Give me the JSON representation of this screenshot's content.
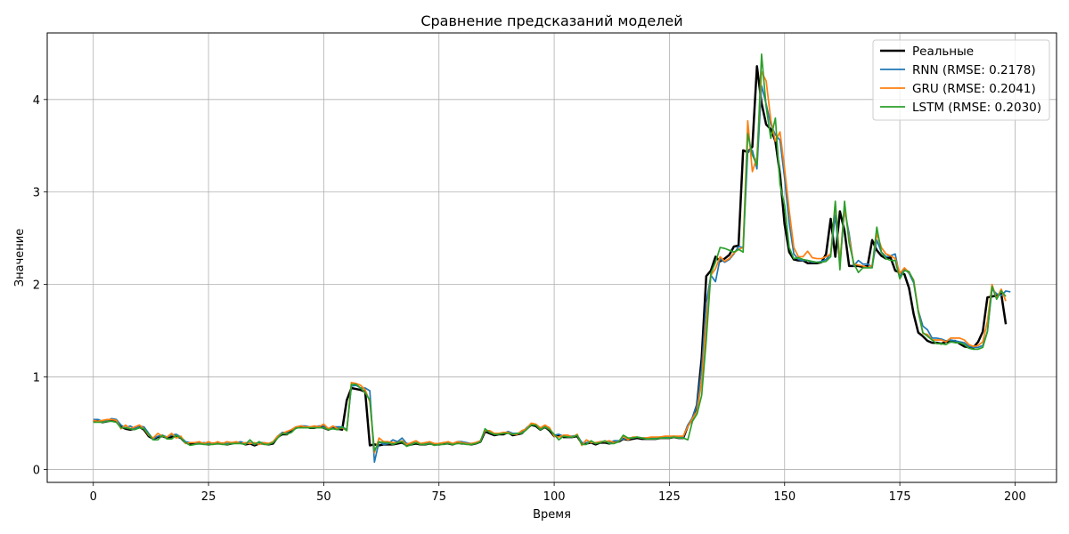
{
  "chart_data": {
    "type": "line",
    "title": "Сравнение предсказаний моделей",
    "xlabel": "Время",
    "ylabel": "Значение",
    "xlim": [
      -10,
      209
    ],
    "ylim": [
      -0.14,
      4.72
    ],
    "xticks": [
      0,
      25,
      50,
      75,
      100,
      125,
      150,
      175,
      200
    ],
    "yticks": [
      0,
      1,
      2,
      3,
      4
    ],
    "grid": true,
    "legend_position": "top-right",
    "series": [
      {
        "name": "Реальные",
        "color": "#000000",
        "width": 2.5,
        "x_start": 0,
        "values": [
          0.52,
          0.53,
          0.51,
          0.52,
          0.53,
          0.52,
          0.46,
          0.44,
          0.43,
          0.44,
          0.46,
          0.43,
          0.36,
          0.33,
          0.35,
          0.36,
          0.34,
          0.35,
          0.36,
          0.34,
          0.29,
          0.28,
          0.28,
          0.28,
          0.28,
          0.27,
          0.28,
          0.28,
          0.28,
          0.27,
          0.28,
          0.29,
          0.29,
          0.27,
          0.28,
          0.26,
          0.28,
          0.28,
          0.27,
          0.28,
          0.35,
          0.38,
          0.38,
          0.42,
          0.45,
          0.46,
          0.46,
          0.45,
          0.45,
          0.46,
          0.45,
          0.43,
          0.45,
          0.44,
          0.43,
          0.75,
          0.88,
          0.87,
          0.86,
          0.84,
          0.26,
          0.27,
          0.26,
          0.27,
          0.27,
          0.27,
          0.28,
          0.29,
          0.26,
          0.27,
          0.28,
          0.27,
          0.27,
          0.28,
          0.27,
          0.27,
          0.28,
          0.28,
          0.27,
          0.29,
          0.28,
          0.28,
          0.27,
          0.28,
          0.3,
          0.41,
          0.39,
          0.37,
          0.38,
          0.38,
          0.4,
          0.37,
          0.38,
          0.39,
          0.44,
          0.48,
          0.47,
          0.43,
          0.46,
          0.42,
          0.36,
          0.37,
          0.35,
          0.35,
          0.35,
          0.36,
          0.28,
          0.28,
          0.29,
          0.27,
          0.29,
          0.29,
          0.28,
          0.3,
          0.3,
          0.33,
          0.32,
          0.33,
          0.34,
          0.33,
          0.33,
          0.33,
          0.33,
          0.34,
          0.34,
          0.34,
          0.35,
          0.34,
          0.34,
          0.47,
          0.55,
          0.7,
          1.2,
          2.09,
          2.15,
          2.3,
          2.25,
          2.28,
          2.32,
          2.41,
          2.42,
          3.45,
          3.43,
          3.49,
          4.36,
          3.96,
          3.73,
          3.68,
          3.55,
          3.19,
          2.65,
          2.35,
          2.27,
          2.26,
          2.26,
          2.23,
          2.23,
          2.23,
          2.24,
          2.33,
          2.71,
          2.3,
          2.79,
          2.58,
          2.2,
          2.2,
          2.2,
          2.19,
          2.2,
          2.48,
          2.37,
          2.31,
          2.28,
          2.29,
          2.15,
          2.13,
          2.11,
          1.96,
          1.68,
          1.48,
          1.44,
          1.39,
          1.37,
          1.37,
          1.36,
          1.38,
          1.38,
          1.39,
          1.36,
          1.33,
          1.32,
          1.32,
          1.38,
          1.49,
          1.86,
          1.87,
          1.88,
          1.9,
          1.57
        ]
      },
      {
        "name": "RNN (RMSE: 0.2178)",
        "color": "#1f77b4",
        "width": 1.7,
        "x_start": 0,
        "values": [
          0.54,
          0.54,
          0.52,
          0.53,
          0.55,
          0.54,
          0.48,
          0.45,
          0.47,
          0.44,
          0.47,
          0.46,
          0.39,
          0.33,
          0.36,
          0.37,
          0.35,
          0.37,
          0.38,
          0.35,
          0.3,
          0.29,
          0.29,
          0.28,
          0.29,
          0.28,
          0.28,
          0.29,
          0.28,
          0.28,
          0.28,
          0.29,
          0.3,
          0.28,
          0.29,
          0.27,
          0.29,
          0.29,
          0.28,
          0.29,
          0.36,
          0.4,
          0.4,
          0.43,
          0.46,
          0.47,
          0.47,
          0.46,
          0.46,
          0.47,
          0.47,
          0.44,
          0.46,
          0.46,
          0.46,
          0.43,
          0.9,
          0.91,
          0.88,
          0.88,
          0.85,
          0.08,
          0.3,
          0.27,
          0.28,
          0.32,
          0.3,
          0.34,
          0.28,
          0.28,
          0.29,
          0.28,
          0.28,
          0.29,
          0.28,
          0.28,
          0.29,
          0.29,
          0.28,
          0.3,
          0.3,
          0.29,
          0.28,
          0.29,
          0.31,
          0.42,
          0.41,
          0.38,
          0.39,
          0.39,
          0.41,
          0.39,
          0.39,
          0.4,
          0.45,
          0.49,
          0.48,
          0.44,
          0.47,
          0.44,
          0.37,
          0.38,
          0.36,
          0.36,
          0.36,
          0.37,
          0.29,
          0.29,
          0.3,
          0.28,
          0.3,
          0.3,
          0.29,
          0.31,
          0.31,
          0.33,
          0.33,
          0.34,
          0.35,
          0.34,
          0.34,
          0.34,
          0.34,
          0.35,
          0.35,
          0.35,
          0.36,
          0.35,
          0.35,
          0.48,
          0.56,
          0.7,
          1.1,
          1.8,
          2.1,
          2.03,
          2.28,
          2.24,
          2.27,
          2.33,
          2.41,
          2.4,
          3.44,
          3.45,
          3.25,
          4.15,
          3.95,
          3.73,
          3.62,
          3.56,
          3.15,
          2.66,
          2.33,
          2.27,
          2.26,
          2.26,
          2.24,
          2.24,
          2.25,
          2.27,
          2.33,
          2.75,
          2.22,
          2.81,
          2.55,
          2.2,
          2.26,
          2.22,
          2.22,
          2.19,
          2.48,
          2.35,
          2.3,
          2.31,
          2.33,
          2.08,
          2.17,
          2.12,
          2.02,
          1.72,
          1.55,
          1.51,
          1.42,
          1.42,
          1.41,
          1.39,
          1.4,
          1.39,
          1.38,
          1.37,
          1.33,
          1.32,
          1.32,
          1.34,
          1.49,
          1.95,
          1.9,
          1.88,
          1.93,
          1.92
        ]
      },
      {
        "name": "GRU (RMSE: 0.2041)",
        "color": "#ff7f0e",
        "width": 1.7,
        "x_start": 0,
        "values": [
          0.53,
          0.52,
          0.53,
          0.54,
          0.54,
          0.53,
          0.44,
          0.48,
          0.44,
          0.46,
          0.48,
          0.44,
          0.37,
          0.34,
          0.39,
          0.36,
          0.35,
          0.39,
          0.34,
          0.36,
          0.28,
          0.29,
          0.29,
          0.3,
          0.28,
          0.3,
          0.28,
          0.3,
          0.28,
          0.3,
          0.29,
          0.3,
          0.28,
          0.29,
          0.28,
          0.29,
          0.27,
          0.29,
          0.28,
          0.3,
          0.36,
          0.39,
          0.41,
          0.43,
          0.46,
          0.47,
          0.46,
          0.46,
          0.47,
          0.46,
          0.49,
          0.44,
          0.47,
          0.44,
          0.45,
          0.42,
          0.94,
          0.93,
          0.91,
          0.86,
          0.73,
          0.18,
          0.34,
          0.3,
          0.3,
          0.29,
          0.29,
          0.31,
          0.27,
          0.29,
          0.31,
          0.28,
          0.29,
          0.3,
          0.28,
          0.28,
          0.29,
          0.3,
          0.28,
          0.3,
          0.29,
          0.28,
          0.28,
          0.29,
          0.31,
          0.42,
          0.42,
          0.39,
          0.39,
          0.4,
          0.4,
          0.38,
          0.38,
          0.42,
          0.44,
          0.5,
          0.49,
          0.45,
          0.48,
          0.45,
          0.36,
          0.35,
          0.37,
          0.37,
          0.35,
          0.38,
          0.26,
          0.32,
          0.29,
          0.29,
          0.3,
          0.3,
          0.31,
          0.29,
          0.3,
          0.36,
          0.32,
          0.35,
          0.35,
          0.34,
          0.34,
          0.35,
          0.35,
          0.35,
          0.36,
          0.36,
          0.36,
          0.36,
          0.36,
          0.46,
          0.55,
          0.63,
          0.95,
          1.6,
          2.1,
          2.17,
          2.3,
          2.25,
          2.28,
          2.34,
          2.38,
          2.4,
          3.77,
          3.22,
          3.38,
          4.3,
          4.2,
          3.78,
          3.55,
          3.65,
          3.25,
          2.8,
          2.4,
          2.3,
          2.3,
          2.36,
          2.29,
          2.28,
          2.28,
          2.3,
          2.33,
          2.88,
          2.25,
          2.83,
          2.5,
          2.22,
          2.21,
          2.2,
          2.18,
          2.21,
          2.55,
          2.4,
          2.33,
          2.31,
          2.28,
          2.12,
          2.18,
          2.13,
          2.05,
          1.72,
          1.47,
          1.46,
          1.4,
          1.4,
          1.4,
          1.38,
          1.42,
          1.42,
          1.42,
          1.4,
          1.35,
          1.33,
          1.34,
          1.38,
          1.6,
          2.0,
          1.85,
          1.95,
          1.82
        ]
      },
      {
        "name": "LSTM (RMSE: 0.2030)",
        "color": "#2ca02c",
        "width": 1.7,
        "x_start": 0,
        "values": [
          0.51,
          0.51,
          0.51,
          0.52,
          0.52,
          0.51,
          0.45,
          0.45,
          0.44,
          0.43,
          0.45,
          0.44,
          0.38,
          0.32,
          0.32,
          0.37,
          0.33,
          0.33,
          0.37,
          0.34,
          0.29,
          0.26,
          0.27,
          0.28,
          0.27,
          0.27,
          0.27,
          0.28,
          0.27,
          0.27,
          0.28,
          0.28,
          0.28,
          0.27,
          0.32,
          0.27,
          0.3,
          0.27,
          0.27,
          0.29,
          0.34,
          0.39,
          0.38,
          0.4,
          0.45,
          0.45,
          0.45,
          0.45,
          0.45,
          0.45,
          0.45,
          0.43,
          0.44,
          0.43,
          0.46,
          0.42,
          0.92,
          0.92,
          0.88,
          0.83,
          0.75,
          0.2,
          0.3,
          0.29,
          0.29,
          0.27,
          0.29,
          0.3,
          0.25,
          0.27,
          0.29,
          0.27,
          0.27,
          0.28,
          0.26,
          0.27,
          0.27,
          0.28,
          0.27,
          0.28,
          0.28,
          0.27,
          0.27,
          0.28,
          0.3,
          0.44,
          0.4,
          0.38,
          0.38,
          0.39,
          0.39,
          0.38,
          0.39,
          0.39,
          0.43,
          0.48,
          0.48,
          0.43,
          0.46,
          0.43,
          0.38,
          0.32,
          0.36,
          0.35,
          0.35,
          0.37,
          0.27,
          0.27,
          0.31,
          0.28,
          0.29,
          0.31,
          0.28,
          0.28,
          0.3,
          0.37,
          0.34,
          0.34,
          0.35,
          0.34,
          0.33,
          0.33,
          0.33,
          0.34,
          0.34,
          0.34,
          0.35,
          0.34,
          0.34,
          0.32,
          0.52,
          0.6,
          0.8,
          1.4,
          2.12,
          2.24,
          2.4,
          2.39,
          2.37,
          2.35,
          2.38,
          2.35,
          3.63,
          3.4,
          3.29,
          4.49,
          3.92,
          3.58,
          3.8,
          3.08,
          2.86,
          2.4,
          2.28,
          2.29,
          2.27,
          2.26,
          2.25,
          2.24,
          2.24,
          2.25,
          2.3,
          2.9,
          2.16,
          2.9,
          2.45,
          2.23,
          2.13,
          2.18,
          2.18,
          2.18,
          2.62,
          2.35,
          2.28,
          2.26,
          2.26,
          2.06,
          2.15,
          2.14,
          2.04,
          1.7,
          1.48,
          1.44,
          1.4,
          1.36,
          1.36,
          1.35,
          1.38,
          1.37,
          1.37,
          1.35,
          1.31,
          1.3,
          1.3,
          1.32,
          1.49,
          1.98,
          1.84,
          1.93,
          1.87
        ]
      }
    ]
  }
}
